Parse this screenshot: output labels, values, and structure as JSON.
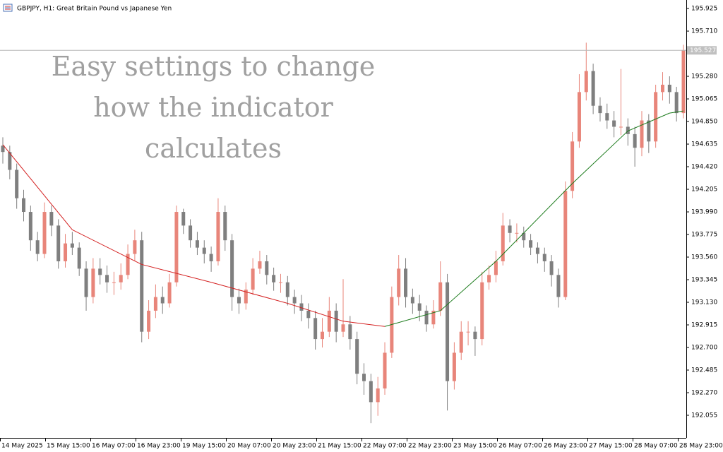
{
  "chart_data": {
    "type": "candlestick",
    "title": "GBPJPY, H1:  Great Britain Pound vs Japanese Yen",
    "annotation": [
      "Easy settings to change",
      "how the indicator",
      "calculates"
    ],
    "categories": [
      "14 May 2025",
      "15 May 15:00",
      "16 May 07:00",
      "16 May 23:00",
      "19 May 15:00",
      "20 May 07:00",
      "20 May 23:00",
      "21 May 15:00",
      "22 May 07:00",
      "22 May 23:00",
      "23 May 15:00",
      "26 May 07:00",
      "26 May 23:00",
      "27 May 15:00",
      "28 May 07:00",
      "28 May 23:00"
    ],
    "ylim": [
      191.84,
      196.006
    ],
    "yticks": [
      195.925,
      {
        "value": 195.71,
        "label": "195.710"
      },
      {
        "value": 195.28,
        "label": "195.280"
      },
      195.065,
      {
        "value": 194.85,
        "label": "194.850"
      },
      194.635,
      {
        "value": 194.42,
        "label": "194.420"
      },
      194.205,
      {
        "value": 193.99,
        "label": "193.990"
      },
      193.775,
      {
        "value": 193.56,
        "label": "193.560"
      },
      193.345,
      {
        "value": 193.13,
        "label": "193.130"
      },
      192.915,
      {
        "value": 192.7,
        "label": "192.700"
      },
      192.485,
      {
        "value": 192.27,
        "label": "192.270"
      },
      192.055
    ],
    "current_price": 195.527,
    "up_color": "#e8857a",
    "down_color": "#7f7f7f",
    "candles": {
      "open": [
        194.62,
        194.56,
        194.39,
        194.12,
        193.99,
        193.72,
        193.59,
        193.99,
        193.86,
        193.52,
        193.69,
        193.65,
        193.45,
        193.18,
        193.45,
        193.39,
        193.32,
        193.32,
        193.39,
        193.59,
        193.72,
        192.85,
        193.05,
        193.18,
        193.12,
        193.32,
        193.99,
        193.86,
        193.72,
        193.65,
        193.59,
        193.52,
        193.99,
        193.72,
        193.18,
        193.12,
        193.25,
        193.45,
        193.52,
        193.39,
        193.32,
        193.32,
        193.18,
        193.12,
        193.05,
        192.98,
        192.78,
        192.85,
        193.05,
        192.85,
        192.92,
        192.78,
        192.45,
        192.38,
        192.18,
        192.31,
        192.65,
        193.18,
        193.45,
        193.18,
        193.12,
        193.05,
        192.92,
        193.05,
        193.32,
        192.38,
        192.65,
        192.85,
        192.85,
        192.78,
        193.32,
        193.39,
        193.52,
        193.86,
        193.79,
        193.79,
        193.72,
        193.65,
        193.59,
        193.52,
        193.39,
        193.18,
        194.19,
        194.66,
        195.13,
        195.33,
        195.0,
        194.93,
        194.86,
        194.8,
        194.8,
        194.73,
        194.6,
        194.86,
        194.66,
        195.13,
        195.2,
        195.13,
        194.93
      ],
      "high": [
        194.7,
        194.62,
        194.45,
        194.2,
        194.05,
        193.8,
        194.08,
        194.05,
        193.92,
        193.78,
        193.8,
        193.7,
        193.52,
        193.55,
        193.55,
        193.48,
        193.42,
        193.5,
        193.68,
        193.82,
        193.8,
        193.15,
        193.3,
        193.28,
        193.4,
        194.05,
        194.02,
        193.92,
        193.8,
        193.72,
        193.66,
        194.12,
        194.05,
        193.78,
        193.26,
        193.32,
        193.55,
        193.62,
        193.58,
        193.46,
        193.4,
        193.38,
        193.25,
        193.2,
        193.12,
        193.05,
        192.98,
        193.18,
        193.12,
        193.35,
        193.0,
        192.85,
        192.55,
        192.45,
        192.42,
        192.75,
        193.28,
        193.58,
        193.55,
        193.26,
        193.2,
        193.1,
        193.15,
        193.52,
        193.4,
        192.75,
        192.95,
        192.95,
        192.9,
        193.42,
        193.48,
        193.62,
        193.98,
        193.92,
        193.88,
        193.85,
        193.78,
        193.7,
        193.65,
        193.58,
        193.45,
        194.28,
        194.75,
        195.3,
        195.6,
        195.4,
        195.08,
        195.02,
        194.95,
        195.35,
        194.88,
        194.8,
        194.95,
        194.92,
        195.2,
        195.32,
        195.28,
        195.18,
        195.58
      ],
      "low": [
        194.45,
        194.3,
        194.02,
        193.9,
        193.62,
        193.52,
        193.55,
        193.76,
        193.45,
        193.46,
        193.58,
        193.38,
        193.05,
        193.12,
        193.3,
        193.22,
        193.2,
        193.25,
        193.35,
        193.52,
        192.75,
        192.78,
        192.98,
        193.02,
        193.08,
        193.28,
        193.78,
        193.65,
        193.58,
        193.5,
        193.42,
        193.48,
        193.62,
        193.05,
        193.02,
        193.06,
        193.2,
        193.4,
        193.3,
        193.24,
        193.22,
        193.1,
        193.02,
        192.95,
        192.88,
        192.68,
        192.7,
        192.8,
        192.75,
        192.8,
        192.68,
        192.35,
        192.25,
        191.98,
        192.05,
        192.25,
        192.6,
        193.1,
        193.08,
        193.02,
        192.95,
        192.85,
        192.88,
        193.0,
        192.1,
        192.3,
        192.58,
        192.72,
        192.62,
        192.72,
        193.25,
        193.32,
        193.48,
        193.7,
        193.7,
        193.65,
        193.58,
        193.5,
        193.42,
        193.28,
        193.08,
        193.15,
        194.12,
        194.6,
        195.05,
        194.92,
        194.85,
        194.78,
        194.7,
        194.72,
        194.62,
        194.42,
        194.52,
        194.55,
        194.6,
        195.05,
        195.02,
        194.85,
        194.88
      ],
      "close": [
        194.56,
        194.39,
        194.12,
        193.99,
        193.72,
        193.59,
        193.99,
        193.86,
        193.52,
        193.69,
        193.65,
        193.45,
        193.18,
        193.45,
        193.39,
        193.32,
        193.32,
        193.39,
        193.59,
        193.72,
        192.85,
        193.05,
        193.18,
        193.12,
        193.32,
        193.99,
        193.86,
        193.72,
        193.65,
        193.59,
        193.52,
        193.99,
        193.72,
        193.18,
        193.12,
        193.25,
        193.45,
        193.52,
        193.39,
        193.32,
        193.32,
        193.18,
        193.12,
        193.05,
        192.98,
        192.78,
        192.85,
        193.05,
        192.85,
        192.92,
        192.78,
        192.45,
        192.38,
        192.18,
        192.31,
        192.65,
        193.18,
        193.45,
        193.18,
        193.12,
        193.05,
        192.92,
        193.05,
        193.32,
        192.38,
        192.65,
        192.85,
        192.85,
        192.78,
        193.32,
        193.39,
        193.52,
        193.86,
        193.79,
        193.79,
        193.72,
        193.65,
        193.59,
        193.52,
        193.39,
        193.18,
        194.19,
        194.66,
        195.13,
        195.33,
        195.0,
        194.93,
        194.86,
        194.8,
        194.8,
        194.73,
        194.6,
        194.86,
        194.66,
        195.13,
        195.2,
        195.13,
        194.93,
        195.53
      ]
    },
    "indicator": {
      "x": [
        0,
        10,
        20,
        30,
        41,
        49,
        55,
        63,
        71,
        82,
        90,
        96,
        98
      ],
      "values": [
        194.63,
        193.82,
        193.49,
        193.32,
        193.12,
        192.95,
        192.9,
        193.05,
        193.52,
        194.26,
        194.76,
        194.93,
        194.95
      ],
      "falling_color": "#d42020",
      "rising_color": "#1a7a1a"
    }
  }
}
